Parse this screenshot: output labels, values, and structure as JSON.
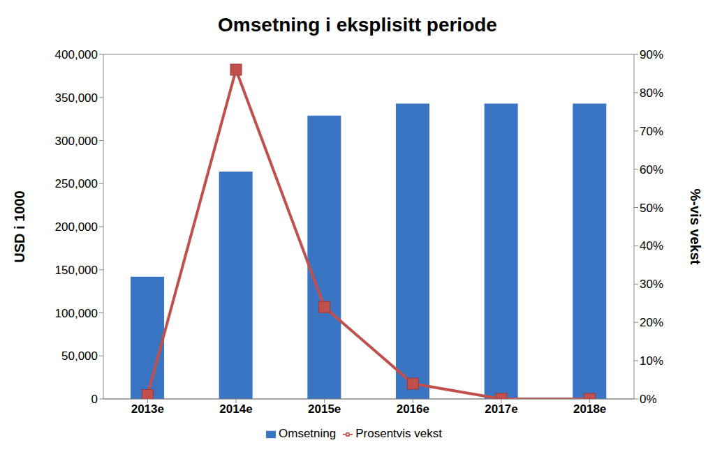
{
  "chart_data": {
    "type": "bar",
    "title": "Omsetning i eksplisitt periode",
    "ylabel": "USD i 1000",
    "y2label": "%-vis vekst",
    "categories": [
      "2013e",
      "2014e",
      "2015e",
      "2016e",
      "2017e",
      "2018e"
    ],
    "series": [
      {
        "name": "Omsetning",
        "type": "bar",
        "color": "#3a75c4",
        "values": [
          142000,
          264000,
          329000,
          343000,
          343000,
          343000
        ]
      },
      {
        "name": "Prosentvis vekst",
        "type": "line",
        "axis": "y2",
        "color": "#c0504d",
        "marker": "square",
        "values": [
          1,
          86,
          24,
          4,
          0,
          0
        ]
      }
    ],
    "ylim": [
      0,
      400000
    ],
    "yticks": [
      0,
      {
        "value": 50000,
        "label": "50,000"
      },
      {
        "value": 100000,
        "label": "100,000"
      },
      {
        "value": 150000,
        "label": "150,000"
      },
      {
        "value": 200000,
        "label": "200,000"
      },
      {
        "value": 250000,
        "label": "250,000"
      },
      {
        "value": 300000,
        "label": "300,000"
      },
      {
        "value": 350000,
        "label": "350,000"
      },
      {
        "value": 400000,
        "label": "400,000"
      }
    ],
    "y2lim": [
      0,
      90
    ],
    "y2ticks": [
      {
        "value": 0,
        "label": "0%"
      },
      {
        "value": 10,
        "label": "10%"
      },
      {
        "value": 20,
        "label": "20%"
      },
      {
        "value": 30,
        "label": "30%"
      },
      {
        "value": 40,
        "label": "40%"
      },
      {
        "value": 50,
        "label": "50%"
      },
      {
        "value": 60,
        "label": "60%"
      },
      {
        "value": 70,
        "label": "70%"
      },
      {
        "value": 80,
        "label": "80%"
      },
      {
        "value": 90,
        "label": "90%"
      }
    ],
    "grid": true,
    "legend": "bottom"
  }
}
